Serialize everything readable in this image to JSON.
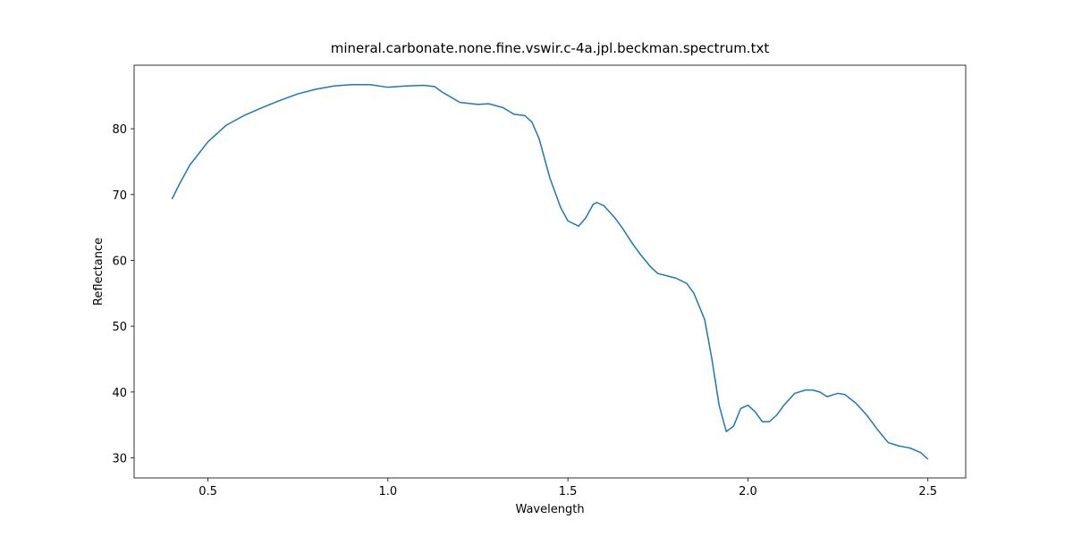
{
  "chart_data": {
    "type": "line",
    "title": "mineral.carbonate.none.fine.vswir.c-4a.jpl.beckman.spectrum.txt",
    "x_label": "Wavelength",
    "y_label": "Reflectance",
    "x": [
      0.4,
      0.42,
      0.45,
      0.5,
      0.55,
      0.6,
      0.65,
      0.7,
      0.75,
      0.8,
      0.85,
      0.9,
      0.95,
      1.0,
      1.05,
      1.1,
      1.13,
      1.15,
      1.2,
      1.25,
      1.28,
      1.32,
      1.35,
      1.38,
      1.4,
      1.42,
      1.45,
      1.48,
      1.5,
      1.53,
      1.55,
      1.57,
      1.58,
      1.6,
      1.63,
      1.65,
      1.68,
      1.7,
      1.73,
      1.75,
      1.8,
      1.83,
      1.85,
      1.88,
      1.9,
      1.92,
      1.94,
      1.96,
      1.98,
      2.0,
      2.02,
      2.04,
      2.06,
      2.08,
      2.1,
      2.13,
      2.16,
      2.18,
      2.2,
      2.22,
      2.25,
      2.27,
      2.3,
      2.33,
      2.36,
      2.39,
      2.42,
      2.45,
      2.48,
      2.5
    ],
    "series": [
      {
        "color": "#1f77b4",
        "values": [
          69.3,
          71.5,
          74.5,
          78.0,
          80.5,
          82.0,
          83.2,
          84.3,
          85.3,
          86.0,
          86.5,
          86.7,
          86.7,
          86.3,
          86.5,
          86.6,
          86.4,
          85.6,
          84.0,
          83.7,
          83.8,
          83.2,
          82.2,
          82.0,
          81.0,
          78.5,
          72.5,
          68.0,
          66.0,
          65.2,
          66.5,
          68.5,
          68.8,
          68.3,
          66.5,
          65.0,
          62.5,
          61.0,
          59.0,
          58.0,
          57.3,
          56.5,
          55.0,
          51.0,
          45.0,
          38.0,
          34.0,
          34.8,
          37.5,
          38.0,
          37.0,
          35.5,
          35.5,
          36.5,
          38.0,
          39.8,
          40.3,
          40.3,
          40.0,
          39.3,
          39.8,
          39.6,
          38.3,
          36.5,
          34.3,
          32.3,
          31.8,
          31.5,
          30.8,
          29.8
        ]
      }
    ],
    "xlim": [
      0.295,
      2.605
    ],
    "ylim": [
      26.95,
      89.65
    ],
    "xticks": [
      0.5,
      {
        "value": 1,
        "label": "1.0"
      },
      1.5,
      {
        "value": 2,
        "label": "2.0"
      },
      2.5
    ],
    "yticks": [
      30,
      40,
      50,
      60,
      70,
      80
    ]
  }
}
